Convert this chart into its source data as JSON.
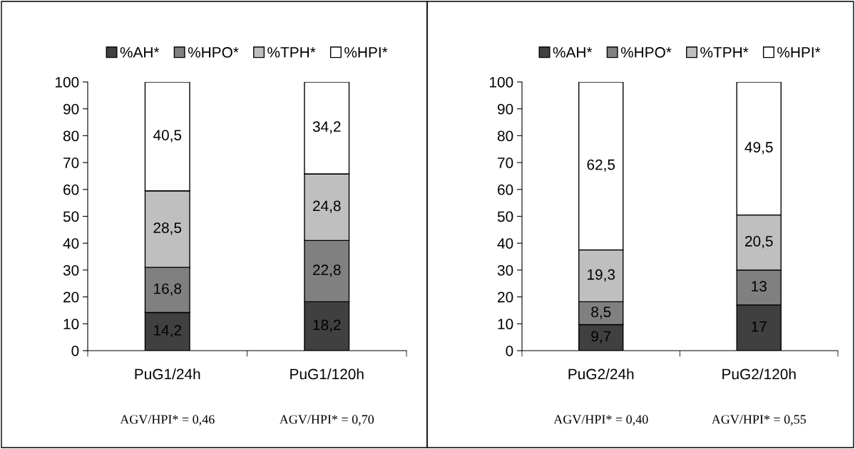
{
  "chart_data": [
    {
      "type": "bar",
      "stacked": true,
      "categories": [
        "PuG1/24h",
        "PuG1/120h"
      ],
      "ylim": [
        0,
        100
      ],
      "yticks": [
        0,
        10,
        20,
        30,
        40,
        50,
        60,
        70,
        80,
        90,
        100
      ],
      "legend": "top",
      "grid": false,
      "series": [
        {
          "name": "%AH*",
          "color": "#404040",
          "values": [
            14.2,
            18.2
          ],
          "value_labels": [
            "14,2",
            "18,2"
          ]
        },
        {
          "name": "%HPO*",
          "color": "#808080",
          "values": [
            16.8,
            22.8
          ],
          "value_labels": [
            "16,8",
            "22,8"
          ]
        },
        {
          "name": "%TPH*",
          "color": "#bfbfbf",
          "values": [
            28.5,
            24.8
          ],
          "value_labels": [
            "28,5",
            "24,8"
          ]
        },
        {
          "name": "%HPI*",
          "color": "#ffffff",
          "values": [
            40.5,
            34.2
          ],
          "value_labels": [
            "40,5",
            "34,2"
          ]
        }
      ],
      "annotations": [
        "AGV/HPI* = 0,46",
        "AGV/HPI* = 0,70"
      ]
    },
    {
      "type": "bar",
      "stacked": true,
      "categories": [
        "PuG2/24h",
        "PuG2/120h"
      ],
      "ylim": [
        0,
        100
      ],
      "yticks": [
        0,
        10,
        20,
        30,
        40,
        50,
        60,
        70,
        80,
        90,
        100
      ],
      "legend": "top",
      "grid": false,
      "series": [
        {
          "name": "%AH*",
          "color": "#404040",
          "values": [
            9.7,
            17
          ],
          "value_labels": [
            "9,7",
            "17"
          ]
        },
        {
          "name": "%HPO*",
          "color": "#808080",
          "values": [
            8.5,
            13
          ],
          "value_labels": [
            "8,5",
            "13"
          ]
        },
        {
          "name": "%TPH*",
          "color": "#bfbfbf",
          "values": [
            19.3,
            20.5
          ],
          "value_labels": [
            "19,3",
            "20,5"
          ]
        },
        {
          "name": "%HPI*",
          "color": "#ffffff",
          "values": [
            62.5,
            49.5
          ],
          "value_labels": [
            "62,5",
            "49,5"
          ]
        }
      ],
      "annotations": [
        "AGV/HPI* = 0,40",
        "AGV/HPI* = 0,55"
      ]
    }
  ]
}
